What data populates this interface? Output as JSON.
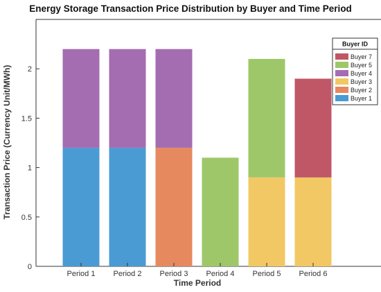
{
  "chart_data": {
    "type": "bar",
    "stacked": true,
    "title": "Energy Storage Transaction Price Distribution by Buyer and Time Period",
    "xlabel": "Time Period",
    "ylabel": "Transaction Price (Currency Unit/MWh)",
    "ylim": [
      0,
      2.5
    ],
    "yticks": [
      "0",
      "0.5",
      "1",
      "1.5",
      "2"
    ],
    "grid": false,
    "categories": [
      "Period 1",
      "Period 2",
      "Period 3",
      "Period 4",
      "Period 5",
      "Period 6"
    ],
    "series": [
      {
        "name": "Buyer 1",
        "color": "#4A9BD3",
        "values": [
          1.2,
          1.2,
          0,
          0,
          0,
          0
        ]
      },
      {
        "name": "Buyer 2",
        "color": "#E6895F",
        "values": [
          0,
          0,
          1.2,
          0,
          0,
          0
        ]
      },
      {
        "name": "Buyer 3",
        "color": "#F2C864",
        "values": [
          0,
          0,
          0,
          0,
          0.9,
          0.9
        ]
      },
      {
        "name": "Buyer 4",
        "color": "#A56DB1",
        "values": [
          1.0,
          1.0,
          1.0,
          0,
          0,
          0
        ]
      },
      {
        "name": "Buyer 5",
        "color": "#9EC76A",
        "values": [
          0,
          0,
          0,
          1.1,
          1.2,
          0
        ]
      },
      {
        "name": "Buyer 7",
        "color": "#C05767",
        "values": [
          0,
          0,
          0,
          0,
          0,
          1.0
        ]
      }
    ],
    "legend": {
      "title": "Buyer ID",
      "placement": "top-right",
      "order": [
        "Buyer 7",
        "Buyer 5",
        "Buyer 4",
        "Buyer 3",
        "Buyer 2",
        "Buyer 1"
      ]
    }
  }
}
